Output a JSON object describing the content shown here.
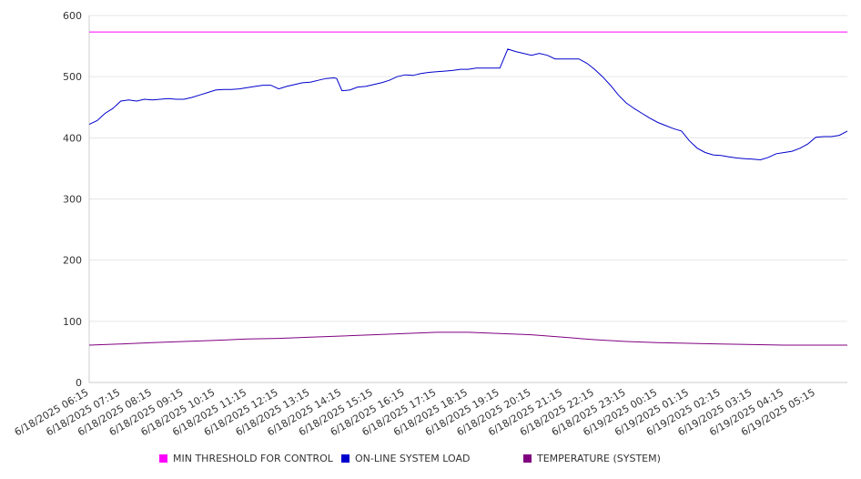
{
  "chart_data": {
    "type": "line",
    "ylim": [
      0,
      600
    ],
    "yticks": [
      0,
      100,
      200,
      300,
      400,
      500,
      600
    ],
    "x_tick_labels": [
      "6/18/2025 06:15",
      "6/18/2025 07:15",
      "6/18/2025 08:15",
      "6/18/2025 09:15",
      "6/18/2025 10:15",
      "6/18/2025 11:15",
      "6/18/2025 12:15",
      "6/18/2025 13:15",
      "6/18/2025 14:15",
      "6/18/2025 15:15",
      "6/18/2025 16:15",
      "6/18/2025 17:15",
      "6/18/2025 18:15",
      "6/18/2025 19:15",
      "6/18/2025 20:15",
      "6/18/2025 21:15",
      "6/18/2025 22:15",
      "6/18/2025 23:15",
      "6/19/2025 00:15",
      "6/19/2025 01:15",
      "6/19/2025 02:15",
      "6/19/2025 03:15",
      "6/19/2025 04:15",
      "6/19/2025 05:15"
    ],
    "x_range": [
      "6/18/2025 06:15",
      "6/19/2025 06:15"
    ],
    "grid": true,
    "legend_position": "bottom",
    "series": [
      {
        "name": "MIN THRESHOLD FOR CONTROL",
        "color": "#ff00ff",
        "points": [
          [
            "6/18/2025 06:15",
            573
          ],
          [
            "6/19/2025 06:15",
            573
          ]
        ]
      },
      {
        "name": "ON-LINE SYSTEM LOAD",
        "color": "#0000cc",
        "points": [
          [
            "6/18/2025 06:15",
            422
          ],
          [
            "6/18/2025 06:30",
            428
          ],
          [
            "6/18/2025 06:45",
            440
          ],
          [
            "6/18/2025 07:00",
            448
          ],
          [
            "6/18/2025 07:15",
            460
          ],
          [
            "6/18/2025 07:30",
            462
          ],
          [
            "6/18/2025 07:45",
            460
          ],
          [
            "6/18/2025 08:00",
            463
          ],
          [
            "6/18/2025 08:15",
            462
          ],
          [
            "6/18/2025 08:30",
            463
          ],
          [
            "6/18/2025 08:45",
            464
          ],
          [
            "6/18/2025 09:00",
            463
          ],
          [
            "6/18/2025 09:15",
            463
          ],
          [
            "6/18/2025 09:30",
            466
          ],
          [
            "6/18/2025 09:45",
            470
          ],
          [
            "6/18/2025 10:00",
            474
          ],
          [
            "6/18/2025 10:15",
            478
          ],
          [
            "6/18/2025 10:30",
            479
          ],
          [
            "6/18/2025 10:45",
            479
          ],
          [
            "6/18/2025 11:00",
            480
          ],
          [
            "6/18/2025 11:15",
            482
          ],
          [
            "6/18/2025 11:30",
            484
          ],
          [
            "6/18/2025 11:45",
            486
          ],
          [
            "6/18/2025 12:00",
            486
          ],
          [
            "6/18/2025 12:15",
            480
          ],
          [
            "6/18/2025 12:30",
            484
          ],
          [
            "6/18/2025 12:45",
            487
          ],
          [
            "6/18/2025 13:00",
            490
          ],
          [
            "6/18/2025 13:15",
            491
          ],
          [
            "6/18/2025 13:30",
            494
          ],
          [
            "6/18/2025 13:45",
            497
          ],
          [
            "6/18/2025 14:00",
            498
          ],
          [
            "6/18/2025 14:05",
            497
          ],
          [
            "6/18/2025 14:15",
            477
          ],
          [
            "6/18/2025 14:30",
            478
          ],
          [
            "6/18/2025 14:45",
            483
          ],
          [
            "6/18/2025 15:00",
            484
          ],
          [
            "6/18/2025 15:15",
            487
          ],
          [
            "6/18/2025 15:30",
            490
          ],
          [
            "6/18/2025 15:45",
            494
          ],
          [
            "6/18/2025 16:00",
            500
          ],
          [
            "6/18/2025 16:15",
            503
          ],
          [
            "6/18/2025 16:30",
            502
          ],
          [
            "6/18/2025 16:45",
            505
          ],
          [
            "6/18/2025 17:00",
            507
          ],
          [
            "6/18/2025 17:15",
            508
          ],
          [
            "6/18/2025 17:30",
            509
          ],
          [
            "6/18/2025 17:45",
            510
          ],
          [
            "6/18/2025 18:00",
            512
          ],
          [
            "6/18/2025 18:15",
            512
          ],
          [
            "6/18/2025 18:30",
            514
          ],
          [
            "6/18/2025 18:45",
            514
          ],
          [
            "6/18/2025 19:00",
            514
          ],
          [
            "6/18/2025 19:15",
            514
          ],
          [
            "6/18/2025 19:30",
            545
          ],
          [
            "6/18/2025 19:45",
            541
          ],
          [
            "6/18/2025 20:00",
            538
          ],
          [
            "6/18/2025 20:15",
            535
          ],
          [
            "6/18/2025 20:30",
            538
          ],
          [
            "6/18/2025 20:45",
            535
          ],
          [
            "6/18/2025 21:00",
            529
          ],
          [
            "6/18/2025 21:15",
            529
          ],
          [
            "6/18/2025 21:30",
            529
          ],
          [
            "6/18/2025 21:45",
            529
          ],
          [
            "6/18/2025 22:00",
            522
          ],
          [
            "6/18/2025 22:15",
            512
          ],
          [
            "6/18/2025 22:30",
            500
          ],
          [
            "6/18/2025 22:45",
            486
          ],
          [
            "6/18/2025 23:00",
            470
          ],
          [
            "6/18/2025 23:15",
            457
          ],
          [
            "6/18/2025 23:30",
            448
          ],
          [
            "6/18/2025 23:45",
            440
          ],
          [
            "6/19/2025 00:00",
            432
          ],
          [
            "6/19/2025 00:15",
            425
          ],
          [
            "6/19/2025 00:30",
            420
          ],
          [
            "6/19/2025 00:45",
            415
          ],
          [
            "6/19/2025 01:00",
            411
          ],
          [
            "6/19/2025 01:15",
            395
          ],
          [
            "6/19/2025 01:30",
            383
          ],
          [
            "6/19/2025 01:45",
            376
          ],
          [
            "6/19/2025 02:00",
            372
          ],
          [
            "6/19/2025 02:15",
            371
          ],
          [
            "6/19/2025 02:30",
            369
          ],
          [
            "6/19/2025 02:45",
            367
          ],
          [
            "6/19/2025 03:00",
            366
          ],
          [
            "6/19/2025 03:15",
            365
          ],
          [
            "6/19/2025 03:30",
            364
          ],
          [
            "6/19/2025 03:45",
            368
          ],
          [
            "6/19/2025 04:00",
            374
          ],
          [
            "6/19/2025 04:15",
            376
          ],
          [
            "6/19/2025 04:30",
            378
          ],
          [
            "6/19/2025 04:45",
            383
          ],
          [
            "6/19/2025 05:00",
            390
          ],
          [
            "6/19/2025 05:15",
            401
          ],
          [
            "6/19/2025 05:30",
            402
          ],
          [
            "6/19/2025 05:45",
            402
          ],
          [
            "6/19/2025 06:00",
            404
          ],
          [
            "6/19/2025 06:15",
            411
          ]
        ]
      },
      {
        "name": "TEMPERATURE (SYSTEM)",
        "color": "#800080",
        "points": [
          [
            "6/18/2025 06:15",
            61
          ],
          [
            "6/18/2025 07:15",
            63
          ],
          [
            "6/18/2025 08:15",
            65
          ],
          [
            "6/18/2025 09:15",
            67
          ],
          [
            "6/18/2025 10:15",
            69
          ],
          [
            "6/18/2025 11:15",
            71
          ],
          [
            "6/18/2025 12:15",
            72
          ],
          [
            "6/18/2025 13:15",
            74
          ],
          [
            "6/18/2025 14:15",
            76
          ],
          [
            "6/18/2025 15:15",
            78
          ],
          [
            "6/18/2025 16:15",
            80
          ],
          [
            "6/18/2025 17:15",
            82
          ],
          [
            "6/18/2025 18:15",
            82
          ],
          [
            "6/18/2025 19:15",
            80
          ],
          [
            "6/18/2025 20:15",
            78
          ],
          [
            "6/18/2025 21:15",
            74
          ],
          [
            "6/18/2025 22:15",
            70
          ],
          [
            "6/18/2025 23:15",
            67
          ],
          [
            "6/19/2025 00:15",
            65
          ],
          [
            "6/19/2025 01:15",
            64
          ],
          [
            "6/19/2025 02:15",
            63
          ],
          [
            "6/19/2025 03:15",
            62
          ],
          [
            "6/19/2025 04:15",
            61
          ],
          [
            "6/19/2025 05:15",
            61
          ],
          [
            "6/19/2025 06:15",
            61
          ]
        ]
      }
    ],
    "colors": {
      "grid": "#e6e6e6",
      "axis": "#cccccc"
    }
  }
}
